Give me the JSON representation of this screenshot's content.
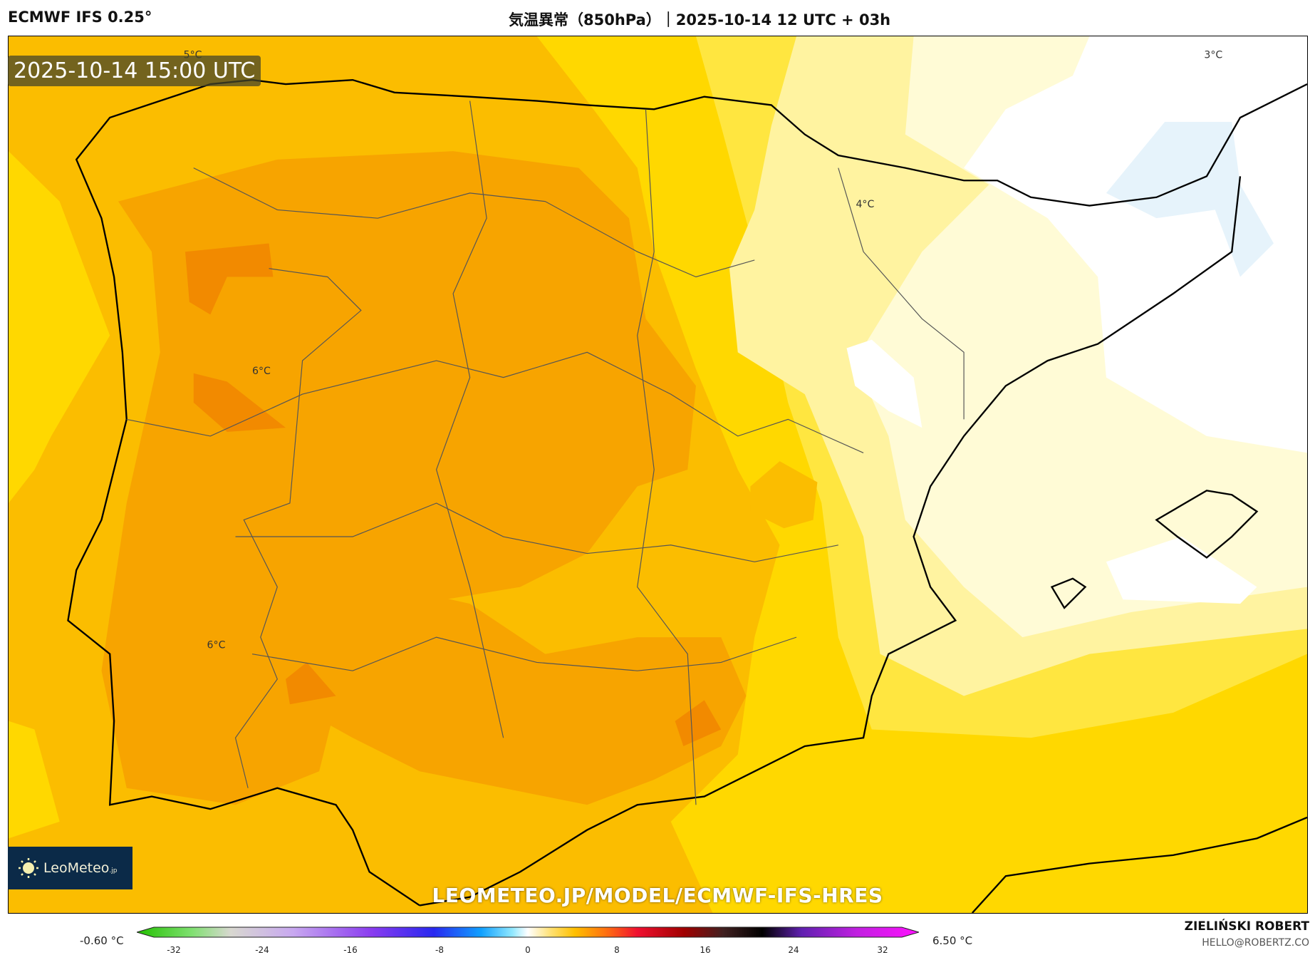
{
  "header": {
    "model": "ECMWF IFS 0.25°",
    "title": "気温異常（850hPa）｜2025-10-14 12 UTC + 03h"
  },
  "map": {
    "valid_time": "2025-10-14 15:00 UTC",
    "contour_labels": [
      "5°C",
      "3°C",
      "4°C",
      "6°C",
      "6°C"
    ],
    "watermark": "LEOMETEO.JP/MODEL/ECMWF-IFS-HRES",
    "logo": {
      "name": "LeoMeteo",
      "suffix": ".jp",
      "icon": "sun-icon"
    },
    "colors": {
      "darkest_orange": "#f28a00",
      "dark_orange": "#f7a400",
      "orange": "#fbbd00",
      "yellow": "#ffd800",
      "light_yellow": "#ffeb3b",
      "pale_yellow": "#fff5a8",
      "cream": "#fffbd6",
      "near_zero": "#ffffff",
      "light_blue": "#e6f3fb"
    }
  },
  "colorbar": {
    "min_label": "-0.60 °C",
    "max_label": "6.50 °C",
    "ticks": [
      "-32",
      "-24",
      "-16",
      "-8",
      "0",
      "8",
      "16",
      "24",
      "32"
    ]
  },
  "credit": {
    "author": "ZIELIŃSKI ROBERT",
    "email": "HELLO@ROBERTZ.CO"
  }
}
